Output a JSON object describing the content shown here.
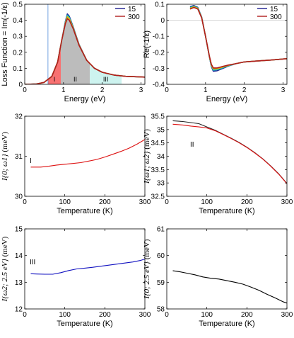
{
  "chart_data": [
    {
      "id": "loss",
      "type": "area",
      "ylabel": "Loss Function = Im(-1/ε)",
      "xlabel": "Energy (eV)",
      "xlim": [
        0,
        3.1
      ],
      "ylim": [
        0,
        0.5
      ],
      "xticks": [
        0,
        1,
        2,
        3
      ],
      "yticks": [
        0,
        0.1,
        0.2,
        0.3,
        0.4,
        0.5
      ],
      "legend": {
        "placement": "top-right",
        "entries": [
          "15",
          "300"
        ]
      },
      "regions": [
        {
          "label": "I",
          "x": [
            0.6,
            0.93
          ],
          "color": "#f87171"
        },
        {
          "label": "II",
          "x": [
            0.93,
            1.68
          ],
          "color": "#bcbcbc"
        },
        {
          "label": "III",
          "x": [
            1.68,
            2.5
          ],
          "color": "#cdf3ef"
        }
      ],
      "vline_x": 0.6,
      "series": [
        {
          "name": "15",
          "color": "#1b1b8f",
          "x": [
            0,
            0.3,
            0.5,
            0.7,
            0.85,
            0.95,
            1.05,
            1.1,
            1.15,
            1.25,
            1.4,
            1.6,
            1.8,
            2.0,
            2.3,
            2.6,
            3.1
          ],
          "y": [
            0.0,
            0.002,
            0.012,
            0.05,
            0.14,
            0.27,
            0.395,
            0.44,
            0.425,
            0.36,
            0.25,
            0.15,
            0.1,
            0.075,
            0.058,
            0.05,
            0.045
          ]
        },
        {
          "name": "",
          "color": "#18c0c0",
          "x": [
            0,
            0.3,
            0.5,
            0.7,
            0.85,
            0.95,
            1.05,
            1.1,
            1.15,
            1.25,
            1.4,
            1.6,
            1.8,
            2.0,
            2.3,
            2.6,
            3.1
          ],
          "y": [
            0.0,
            0.002,
            0.012,
            0.05,
            0.14,
            0.27,
            0.39,
            0.432,
            0.418,
            0.356,
            0.248,
            0.15,
            0.1,
            0.075,
            0.058,
            0.05,
            0.045
          ]
        },
        {
          "name": "",
          "color": "#e0b400",
          "x": [
            0,
            0.3,
            0.5,
            0.7,
            0.85,
            0.95,
            1.05,
            1.1,
            1.15,
            1.25,
            1.4,
            1.6,
            1.8,
            2.0,
            2.3,
            2.6,
            3.1
          ],
          "y": [
            0.0,
            0.002,
            0.012,
            0.05,
            0.14,
            0.27,
            0.385,
            0.422,
            0.41,
            0.352,
            0.246,
            0.15,
            0.1,
            0.075,
            0.058,
            0.05,
            0.045
          ]
        },
        {
          "name": "300",
          "color": "#b11d1d",
          "x": [
            0,
            0.3,
            0.5,
            0.7,
            0.85,
            0.95,
            1.05,
            1.1,
            1.15,
            1.25,
            1.4,
            1.6,
            1.8,
            2.0,
            2.3,
            2.6,
            3.1
          ],
          "y": [
            0.0,
            0.002,
            0.012,
            0.05,
            0.14,
            0.27,
            0.38,
            0.41,
            0.4,
            0.348,
            0.244,
            0.15,
            0.1,
            0.075,
            0.058,
            0.05,
            0.045
          ]
        }
      ]
    },
    {
      "id": "re",
      "type": "line",
      "ylabel": "Re(-1/ε)",
      "xlabel": "Energy (eV)",
      "xlim": [
        0,
        3.1
      ],
      "ylim": [
        -0.4,
        0.1
      ],
      "xticks": [
        0,
        1,
        2,
        3
      ],
      "yticks": [
        -0.4,
        -0.3,
        -0.2,
        -0.1,
        0,
        0.1
      ],
      "legend": {
        "placement": "top-right",
        "entries": [
          "15",
          "300"
        ]
      },
      "series": [
        {
          "name": "15",
          "color": "#1b1b8f",
          "x": [
            0.6,
            0.7,
            0.8,
            0.9,
            1.0,
            1.1,
            1.15,
            1.2,
            1.3,
            1.45,
            1.6,
            1.8,
            2.0,
            2.3,
            2.6,
            3.1
          ],
          "y": [
            0.085,
            0.092,
            0.08,
            0.02,
            -0.1,
            -0.23,
            -0.29,
            -0.318,
            -0.315,
            -0.3,
            -0.285,
            -0.27,
            -0.26,
            -0.255,
            -0.25,
            -0.24
          ]
        },
        {
          "name": "",
          "color": "#18c0c0",
          "x": [
            0.6,
            0.7,
            0.8,
            0.9,
            1.0,
            1.1,
            1.15,
            1.2,
            1.3,
            1.45,
            1.6,
            1.8,
            2.0,
            2.3,
            2.6,
            3.1
          ],
          "y": [
            0.08,
            0.088,
            0.077,
            0.018,
            -0.1,
            -0.228,
            -0.285,
            -0.311,
            -0.309,
            -0.296,
            -0.283,
            -0.27,
            -0.26,
            -0.255,
            -0.25,
            -0.24
          ]
        },
        {
          "name": "",
          "color": "#e0b400",
          "x": [
            0.6,
            0.7,
            0.8,
            0.9,
            1.0,
            1.1,
            1.15,
            1.2,
            1.3,
            1.45,
            1.6,
            1.8,
            2.0,
            2.3,
            2.6,
            3.1
          ],
          "y": [
            0.075,
            0.084,
            0.074,
            0.016,
            -0.1,
            -0.226,
            -0.28,
            -0.304,
            -0.303,
            -0.292,
            -0.281,
            -0.27,
            -0.26,
            -0.255,
            -0.25,
            -0.24
          ]
        },
        {
          "name": "300",
          "color": "#b11d1d",
          "x": [
            0.6,
            0.7,
            0.8,
            0.9,
            1.0,
            1.1,
            1.15,
            1.2,
            1.3,
            1.45,
            1.6,
            1.8,
            2.0,
            2.3,
            2.6,
            3.1
          ],
          "y": [
            0.07,
            0.08,
            0.07,
            0.014,
            -0.1,
            -0.224,
            -0.275,
            -0.298,
            -0.298,
            -0.288,
            -0.279,
            -0.27,
            -0.26,
            -0.255,
            -0.25,
            -0.24
          ]
        }
      ]
    },
    {
      "id": "p1",
      "type": "line",
      "ylabel": "I{0; ω1} (meV)",
      "xlabel": "Temperature (K)",
      "annotation": "I",
      "xlim": [
        0,
        300
      ],
      "ylim": [
        30,
        32
      ],
      "xticks": [
        0,
        100,
        200,
        300
      ],
      "yticks": [
        30,
        31,
        32
      ],
      "series": [
        {
          "color": "#d11",
          "x": [
            15,
            40,
            60,
            80,
            100,
            120,
            140,
            160,
            180,
            200,
            220,
            240,
            260,
            280,
            300
          ],
          "y": [
            30.73,
            30.73,
            30.75,
            30.78,
            30.8,
            30.82,
            30.84,
            30.88,
            30.92,
            30.98,
            31.05,
            31.12,
            31.2,
            31.3,
            31.42
          ]
        }
      ]
    },
    {
      "id": "p2",
      "type": "line",
      "ylabel": "I{ω1; ω2} (meV)",
      "xlabel": "Temperature (K)",
      "annotation": "II",
      "xlim": [
        0,
        300
      ],
      "ylim": [
        32.5,
        35.5
      ],
      "xticks": [
        0,
        100,
        200,
        300
      ],
      "yticks": [
        32.5,
        33,
        33.5,
        34,
        34.5,
        35,
        35.5
      ],
      "series": [
        {
          "color": "#222",
          "x": [
            15,
            40,
            60,
            80,
            100,
            120,
            140,
            160,
            180,
            200,
            220,
            240,
            260,
            280,
            300
          ],
          "y": [
            35.33,
            35.3,
            35.26,
            35.22,
            35.1,
            34.98,
            34.83,
            34.68,
            34.52,
            34.34,
            34.13,
            33.9,
            33.63,
            33.33,
            32.98
          ]
        },
        {
          "color": "#d11",
          "x": [
            15,
            40,
            60,
            80,
            100,
            120,
            140,
            160,
            180,
            200,
            220,
            240,
            260,
            280,
            300
          ],
          "y": [
            35.2,
            35.17,
            35.13,
            35.1,
            35.06,
            34.96,
            34.82,
            34.67,
            34.51,
            34.33,
            34.12,
            33.89,
            33.62,
            33.32,
            32.97
          ]
        }
      ]
    },
    {
      "id": "p3",
      "type": "line",
      "ylabel": "I{ω2; 2.5 eV} (meV)",
      "xlabel": "Temperature (K)",
      "annotation": "III",
      "xlim": [
        0,
        300
      ],
      "ylim": [
        12,
        15
      ],
      "xticks": [
        0,
        100,
        200,
        300
      ],
      "yticks": [
        12,
        13,
        14,
        15
      ],
      "series": [
        {
          "color": "#1010c0",
          "x": [
            15,
            30,
            50,
            70,
            90,
            110,
            130,
            150,
            170,
            190,
            210,
            230,
            250,
            270,
            290,
            300
          ],
          "y": [
            13.32,
            13.31,
            13.3,
            13.3,
            13.36,
            13.44,
            13.5,
            13.53,
            13.56,
            13.6,
            13.64,
            13.68,
            13.72,
            13.76,
            13.82,
            13.87
          ]
        }
      ]
    },
    {
      "id": "p4",
      "type": "line",
      "ylabel": "I{0; 2.5 eV} (meV)",
      "xlabel": "Temperature (K)",
      "xlim": [
        0,
        300
      ],
      "ylim": [
        58,
        61
      ],
      "xticks": [
        0,
        100,
        200,
        300
      ],
      "yticks": [
        58,
        59,
        60,
        61
      ],
      "series": [
        {
          "color": "#000",
          "x": [
            15,
            30,
            50,
            70,
            90,
            110,
            130,
            150,
            170,
            190,
            210,
            230,
            250,
            270,
            290,
            300
          ],
          "y": [
            59.43,
            59.4,
            59.34,
            59.28,
            59.2,
            59.15,
            59.12,
            59.06,
            59.0,
            58.93,
            58.82,
            58.7,
            58.55,
            58.42,
            58.27,
            58.22
          ]
        }
      ]
    }
  ]
}
